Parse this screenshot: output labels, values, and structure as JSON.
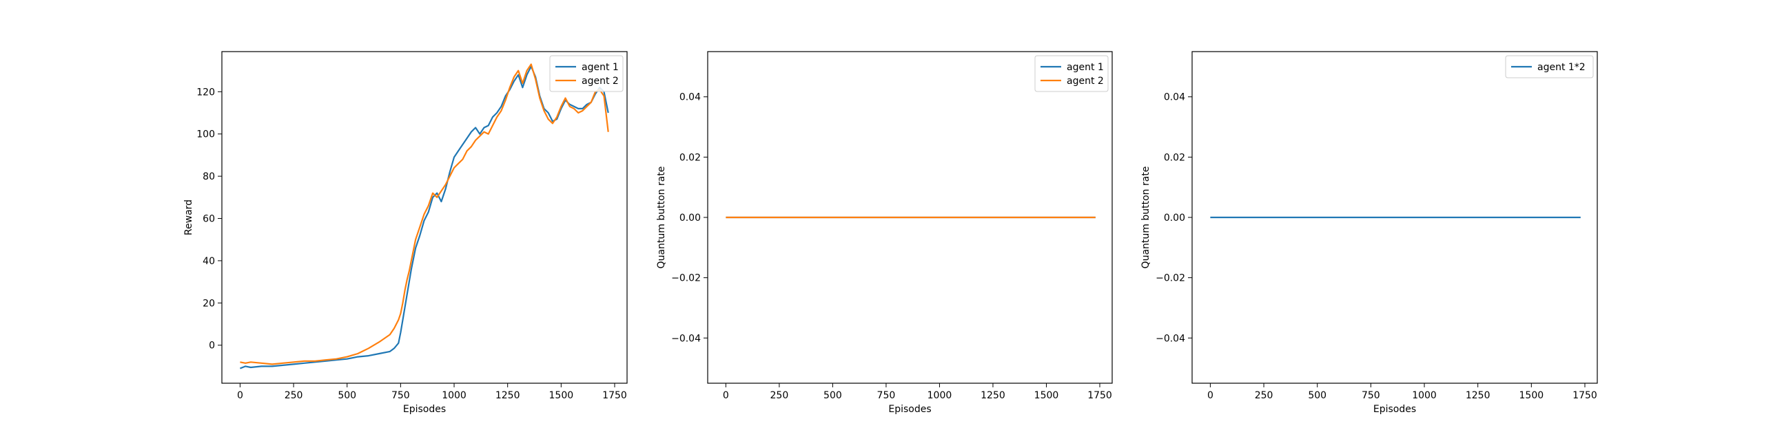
{
  "chart_data": [
    {
      "type": "line",
      "xlabel": "Episodes",
      "ylabel": "Reward",
      "xlim": [
        -85,
        1808
      ],
      "ylim": [
        -18,
        139
      ],
      "xticks": [
        0,
        250,
        500,
        750,
        1000,
        1250,
        1500,
        1750
      ],
      "yticks": [
        0,
        20,
        40,
        60,
        80,
        100,
        120
      ],
      "legend_position": "top-right",
      "series": [
        {
          "name": "agent 1",
          "color": "#1f77b4",
          "x": [
            0,
            25,
            50,
            100,
            150,
            200,
            250,
            300,
            350,
            400,
            450,
            500,
            550,
            600,
            650,
            700,
            720,
            740,
            750,
            760,
            770,
            780,
            790,
            800,
            820,
            840,
            860,
            880,
            900,
            920,
            940,
            960,
            980,
            1000,
            1020,
            1040,
            1060,
            1080,
            1100,
            1120,
            1140,
            1160,
            1180,
            1200,
            1220,
            1240,
            1260,
            1280,
            1300,
            1320,
            1340,
            1360,
            1380,
            1400,
            1420,
            1440,
            1460,
            1480,
            1500,
            1520,
            1540,
            1560,
            1580,
            1600,
            1620,
            1640,
            1660,
            1680,
            1700,
            1720
          ],
          "y": [
            -11,
            -10,
            -10.5,
            -10,
            -10,
            -9.5,
            -9,
            -8.5,
            -8,
            -7.5,
            -7,
            -6.5,
            -5.5,
            -5,
            -4,
            -3,
            -1.5,
            1,
            6,
            12,
            18,
            24,
            30,
            36,
            46,
            52,
            59,
            63,
            70,
            72,
            68,
            74,
            82,
            89,
            92,
            95,
            98,
            101,
            103,
            100,
            103,
            104,
            108,
            110,
            113,
            118,
            121,
            125,
            128,
            122,
            128,
            132,
            127,
            118,
            112,
            110,
            106,
            107,
            112,
            116,
            114,
            113,
            112,
            112,
            114,
            115,
            119,
            122,
            120,
            110
          ]
        },
        {
          "name": "agent 2",
          "color": "#ff7f0e",
          "x": [
            0,
            25,
            50,
            100,
            150,
            200,
            250,
            300,
            350,
            400,
            450,
            500,
            550,
            600,
            650,
            700,
            720,
            740,
            750,
            760,
            770,
            780,
            790,
            800,
            820,
            840,
            860,
            880,
            900,
            920,
            940,
            960,
            980,
            1000,
            1020,
            1040,
            1060,
            1080,
            1100,
            1120,
            1140,
            1160,
            1180,
            1200,
            1220,
            1240,
            1260,
            1280,
            1300,
            1320,
            1340,
            1360,
            1380,
            1400,
            1420,
            1440,
            1460,
            1480,
            1500,
            1520,
            1540,
            1560,
            1580,
            1600,
            1620,
            1640,
            1660,
            1680,
            1700,
            1720
          ],
          "y": [
            -8,
            -8.5,
            -8,
            -8.5,
            -9,
            -8.5,
            -8,
            -7.5,
            -7.5,
            -7,
            -6.5,
            -5.5,
            -4,
            -1.5,
            1.5,
            5,
            8,
            12,
            15,
            20,
            26,
            31,
            35,
            40,
            50,
            56,
            62,
            66,
            72,
            70,
            73,
            76,
            80,
            84,
            86,
            88,
            92,
            94,
            97,
            99,
            101,
            100,
            104,
            108,
            111,
            116,
            122,
            127,
            130,
            124,
            130,
            133,
            126,
            117,
            111,
            107,
            105,
            108,
            113,
            117,
            113,
            112,
            110,
            111,
            113,
            115,
            120,
            121,
            118,
            101
          ]
        }
      ]
    },
    {
      "type": "line",
      "xlabel": "Episodes",
      "ylabel": "Quantum button rate",
      "xlim": [
        -85,
        1808
      ],
      "ylim": [
        -0.055,
        0.055
      ],
      "xticks": [
        0,
        250,
        500,
        750,
        1000,
        1250,
        1500,
        1750
      ],
      "yticks": [
        -0.04,
        -0.02,
        0.0,
        0.02,
        0.04
      ],
      "yticklabels": [
        "−0.04",
        "−0.02",
        "0.00",
        "0.02",
        "0.04"
      ],
      "legend_position": "top-right",
      "series": [
        {
          "name": "agent 1",
          "color": "#1f77b4",
          "x": [
            0,
            1730
          ],
          "y": [
            0,
            0
          ]
        },
        {
          "name": "agent 2",
          "color": "#ff7f0e",
          "x": [
            0,
            1730
          ],
          "y": [
            0,
            0
          ]
        }
      ]
    },
    {
      "type": "line",
      "xlabel": "Episodes",
      "ylabel": "Quantum button rate",
      "xlim": [
        -85,
        1808
      ],
      "ylim": [
        -0.055,
        0.055
      ],
      "xticks": [
        0,
        250,
        500,
        750,
        1000,
        1250,
        1500,
        1750
      ],
      "yticks": [
        -0.04,
        -0.02,
        0.0,
        0.02,
        0.04
      ],
      "yticklabels": [
        "−0.04",
        "−0.02",
        "0.00",
        "0.02",
        "0.04"
      ],
      "legend_position": "top-right",
      "series": [
        {
          "name": "agent 1*2",
          "color": "#1f77b4",
          "x": [
            0,
            1730
          ],
          "y": [
            0,
            0
          ]
        }
      ]
    }
  ]
}
